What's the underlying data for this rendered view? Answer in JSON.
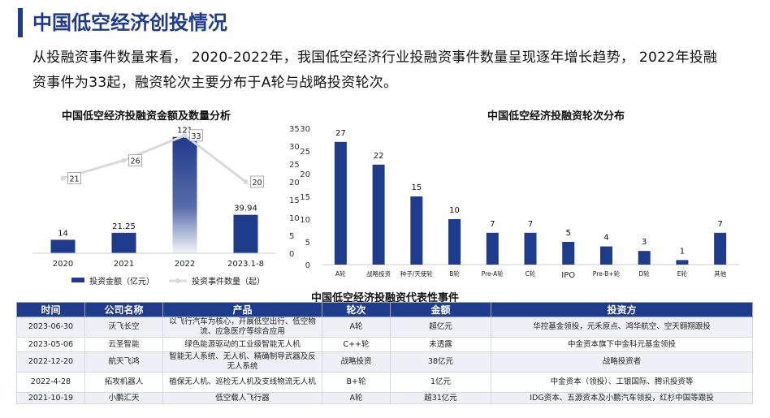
{
  "page": {
    "title": "中国低空经济创投情况",
    "intro": "从投融资事件数量来看，  2020-2022年，我国低空经济行业投融资事件数量呈现逐年增长趋势，  2022年投融资事件为33起，融资轮次主要分布于A轮与战略投资轮次。"
  },
  "colors": {
    "primary": "#1f3b8c",
    "line": "#d9d9d9"
  },
  "chart_data": [
    {
      "type": "bar+line",
      "title": "中国低空经济投融资金额及数量分析",
      "categories": [
        "2020",
        "2021",
        "2022",
        "2023.1-8"
      ],
      "series": [
        {
          "name": "投资金额（亿元）",
          "type": "bar",
          "values": [
            14,
            21.25,
            121,
            39.94
          ],
          "labels": [
            "14",
            "21.25",
            "121",
            "39.94"
          ]
        },
        {
          "name": "投资事件数量（起）",
          "type": "line",
          "values": [
            21,
            26,
            33,
            20
          ],
          "labels": [
            "21",
            "26",
            "33",
            "20"
          ]
        }
      ],
      "y_right": {
        "ticks": [
          "0",
          "5",
          "10",
          "15",
          "20",
          "25",
          "30",
          "35"
        ],
        "range": [
          0,
          35
        ]
      },
      "legend_position": "bottom",
      "grid": false
    },
    {
      "type": "bar",
      "title": "中国低空经济投融资轮次分布",
      "categories": [
        "A轮",
        "战略投资",
        "种子/天使轮",
        "B轮",
        "Pre-A轮",
        "C轮",
        "IPO",
        "Pre-B+轮",
        "D轮",
        "E轮",
        "其他"
      ],
      "values": [
        27,
        22,
        15,
        10,
        7,
        7,
        5,
        4,
        3,
        1,
        7
      ],
      "value_labels": [
        "27",
        "22",
        "15",
        "10",
        "7",
        "7",
        "5",
        "4",
        "3",
        "1",
        "7"
      ],
      "y_ticks": [
        "0",
        "5",
        "10",
        "15",
        "20",
        "25",
        "30"
      ],
      "ylim": [
        0,
        30
      ],
      "grid": false
    }
  ],
  "table": {
    "title": "中国低空经济投融资代表性事件",
    "headers": [
      "时间",
      "公司名称",
      "产品",
      "轮次",
      "金额",
      "投资方"
    ],
    "rows": [
      {
        "date": "2023-06-30",
        "company": "沃飞长空",
        "product": "以飞行汽车为核心，开展低空出行、低空物流、应急医疗等综合应用",
        "round": "A轮",
        "amount": "超亿元",
        "investors": "华控基金领投，元禾原点、鸿华航空、空天翱翔跟投"
      },
      {
        "date": "2023-05-06",
        "company": "云圣智能",
        "product": "绿色能源驱动的工业级智能无人机",
        "round": "C++轮",
        "amount": "未透露",
        "investors": "中金资本旗下中金科元基金领投"
      },
      {
        "date": "2022-12-20",
        "company": "航天飞鸿",
        "product": "智能无人系统、无人机、精确制导武器及反无人系统",
        "round": "战略投资",
        "amount": "38亿元",
        "investors": "战略投资者"
      },
      {
        "date": "2022-4-28",
        "company": "拓攻机器人",
        "product": "植保无人机、巡检无人机及支线物流无人机",
        "round": "B+轮",
        "amount": "1亿元",
        "investors": "中金资本（领投）、工银国际、腾讯投资等"
      },
      {
        "date": "2021-10-19",
        "company": "小鹏汇天",
        "product": "低空载人飞行器",
        "round": "A轮",
        "amount": "超31亿元",
        "investors": "IDG资本、五源资本及小鹏汽车领投，红杉中国等跟投"
      }
    ]
  }
}
